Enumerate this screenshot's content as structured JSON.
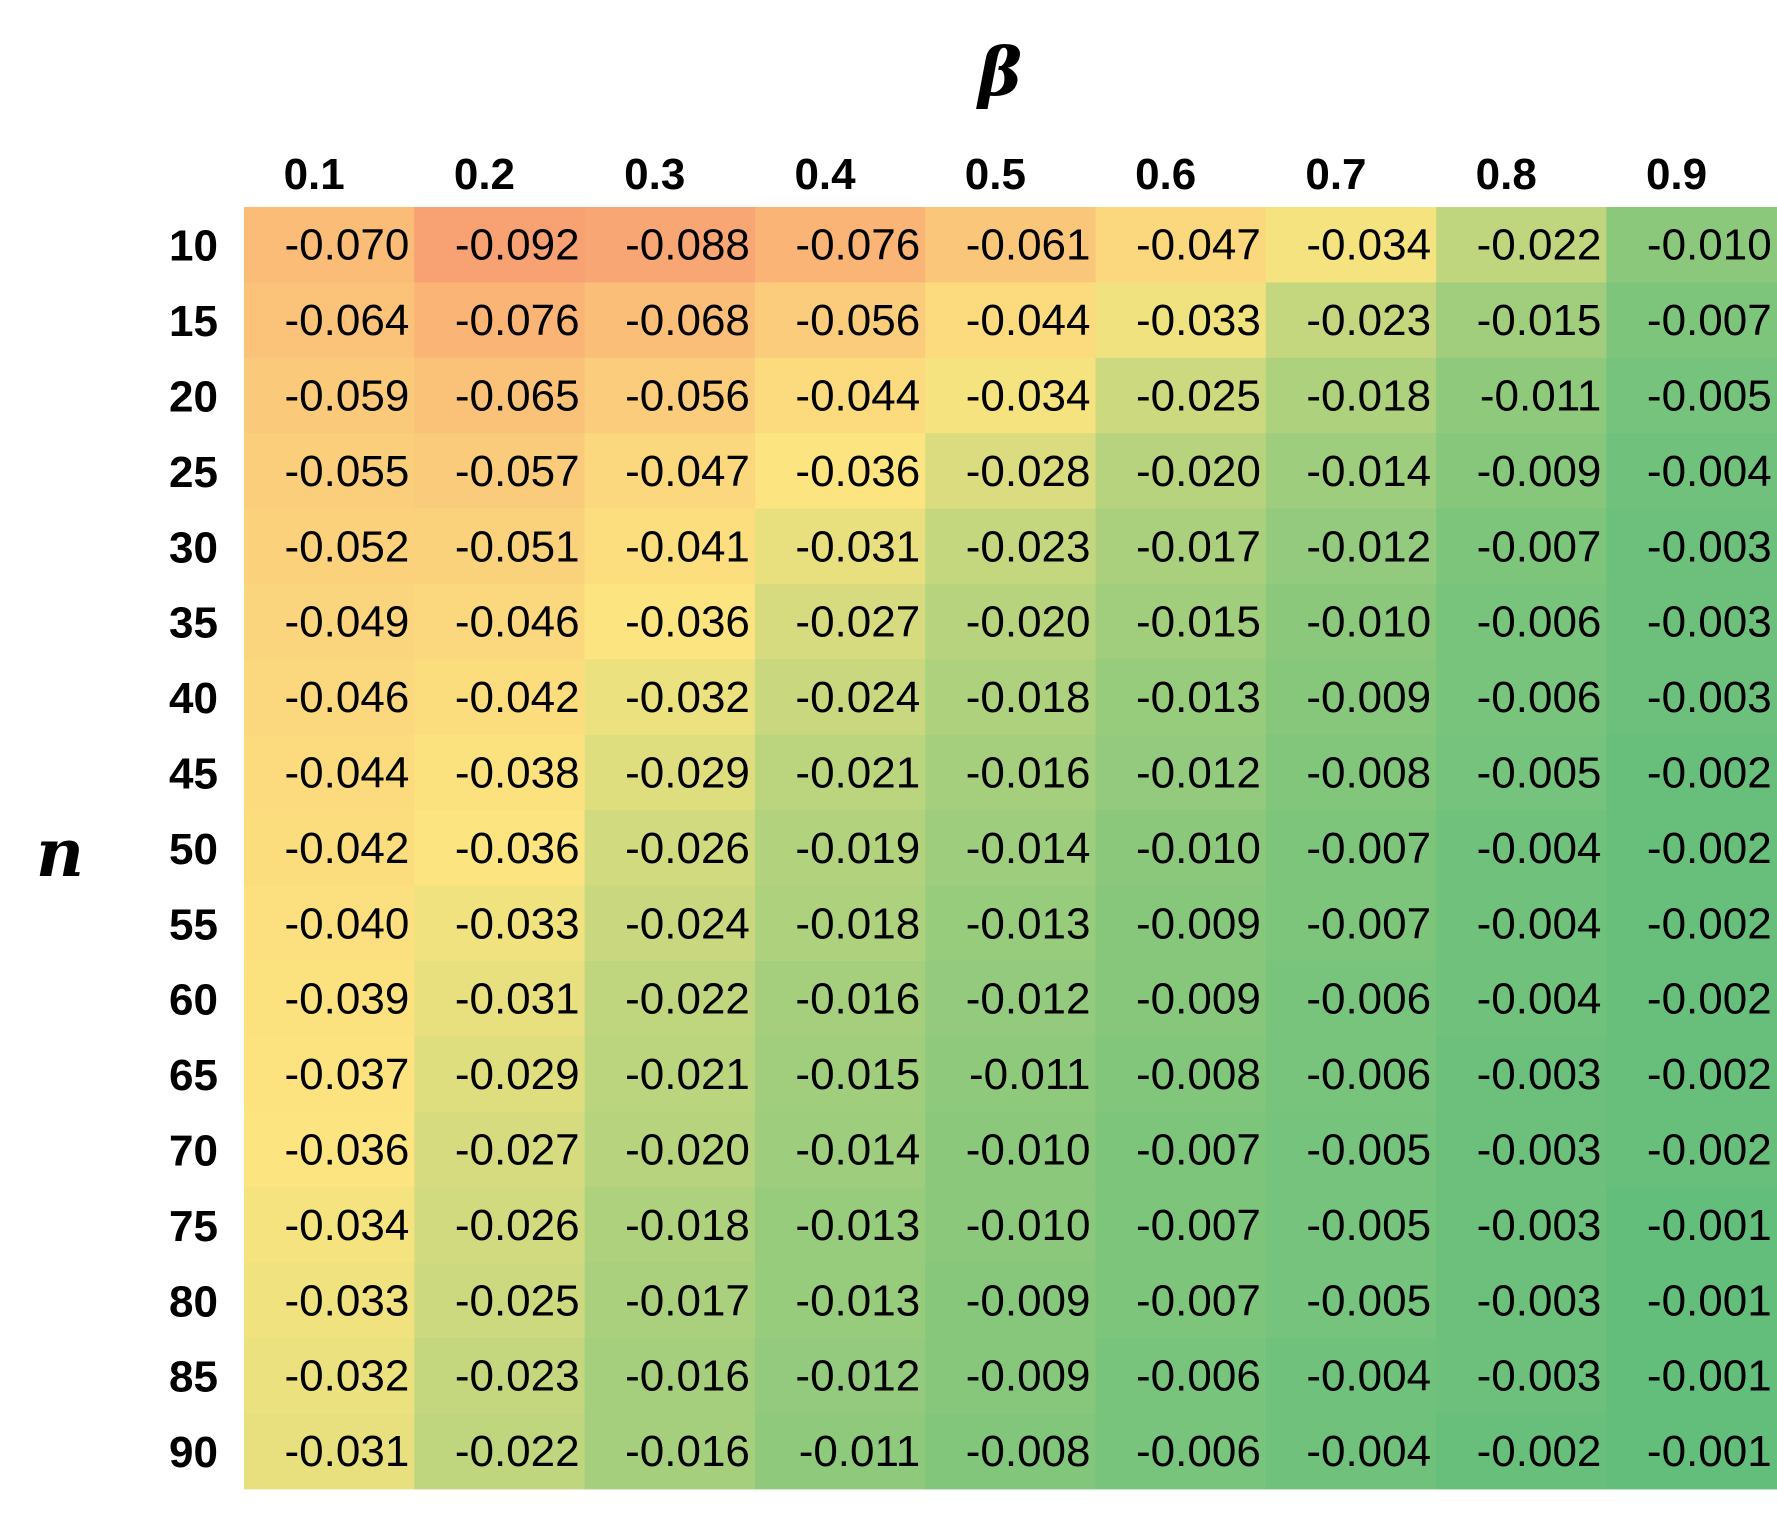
{
  "chart_data": {
    "type": "heatmap",
    "title": "",
    "xlabel": "β",
    "ylabel": "n",
    "x_categories": [
      "0.1",
      "0.2",
      "0.3",
      "0.4",
      "0.5",
      "0.6",
      "0.7",
      "0.8",
      "0.9"
    ],
    "y_categories": [
      "10",
      "15",
      "20",
      "25",
      "30",
      "35",
      "40",
      "45",
      "50",
      "55",
      "60",
      "65",
      "70",
      "75",
      "80",
      "85",
      "90"
    ],
    "values": [
      [
        "-0.070",
        "-0.092",
        "-0.088",
        "-0.076",
        "-0.061",
        "-0.047",
        "-0.034",
        "-0.022",
        "-0.010"
      ],
      [
        "-0.064",
        "-0.076",
        "-0.068",
        "-0.056",
        "-0.044",
        "-0.033",
        "-0.023",
        "-0.015",
        "-0.007"
      ],
      [
        "-0.059",
        "-0.065",
        "-0.056",
        "-0.044",
        "-0.034",
        "-0.025",
        "-0.018",
        "-0.011",
        "-0.005"
      ],
      [
        "-0.055",
        "-0.057",
        "-0.047",
        "-0.036",
        "-0.028",
        "-0.020",
        "-0.014",
        "-0.009",
        "-0.004"
      ],
      [
        "-0.052",
        "-0.051",
        "-0.041",
        "-0.031",
        "-0.023",
        "-0.017",
        "-0.012",
        "-0.007",
        "-0.003"
      ],
      [
        "-0.049",
        "-0.046",
        "-0.036",
        "-0.027",
        "-0.020",
        "-0.015",
        "-0.010",
        "-0.006",
        "-0.003"
      ],
      [
        "-0.046",
        "-0.042",
        "-0.032",
        "-0.024",
        "-0.018",
        "-0.013",
        "-0.009",
        "-0.006",
        "-0.003"
      ],
      [
        "-0.044",
        "-0.038",
        "-0.029",
        "-0.021",
        "-0.016",
        "-0.012",
        "-0.008",
        "-0.005",
        "-0.002"
      ],
      [
        "-0.042",
        "-0.036",
        "-0.026",
        "-0.019",
        "-0.014",
        "-0.010",
        "-0.007",
        "-0.004",
        "-0.002"
      ],
      [
        "-0.040",
        "-0.033",
        "-0.024",
        "-0.018",
        "-0.013",
        "-0.009",
        "-0.007",
        "-0.004",
        "-0.002"
      ],
      [
        "-0.039",
        "-0.031",
        "-0.022",
        "-0.016",
        "-0.012",
        "-0.009",
        "-0.006",
        "-0.004",
        "-0.002"
      ],
      [
        "-0.037",
        "-0.029",
        "-0.021",
        "-0.015",
        "-0.011",
        "-0.008",
        "-0.006",
        "-0.003",
        "-0.002"
      ],
      [
        "-0.036",
        "-0.027",
        "-0.020",
        "-0.014",
        "-0.010",
        "-0.007",
        "-0.005",
        "-0.003",
        "-0.002"
      ],
      [
        "-0.034",
        "-0.026",
        "-0.018",
        "-0.013",
        "-0.010",
        "-0.007",
        "-0.005",
        "-0.003",
        "-0.001"
      ],
      [
        "-0.033",
        "-0.025",
        "-0.017",
        "-0.013",
        "-0.009",
        "-0.007",
        "-0.005",
        "-0.003",
        "-0.001"
      ],
      [
        "-0.032",
        "-0.023",
        "-0.016",
        "-0.012",
        "-0.009",
        "-0.006",
        "-0.004",
        "-0.003",
        "-0.001"
      ],
      [
        "-0.031",
        "-0.022",
        "-0.016",
        "-0.011",
        "-0.008",
        "-0.006",
        "-0.004",
        "-0.002",
        "-0.001"
      ]
    ],
    "color_scale": {
      "low": "#f8a172",
      "mid": "#fce580",
      "high": "#63be7b"
    },
    "grid": false,
    "legend": "none"
  }
}
